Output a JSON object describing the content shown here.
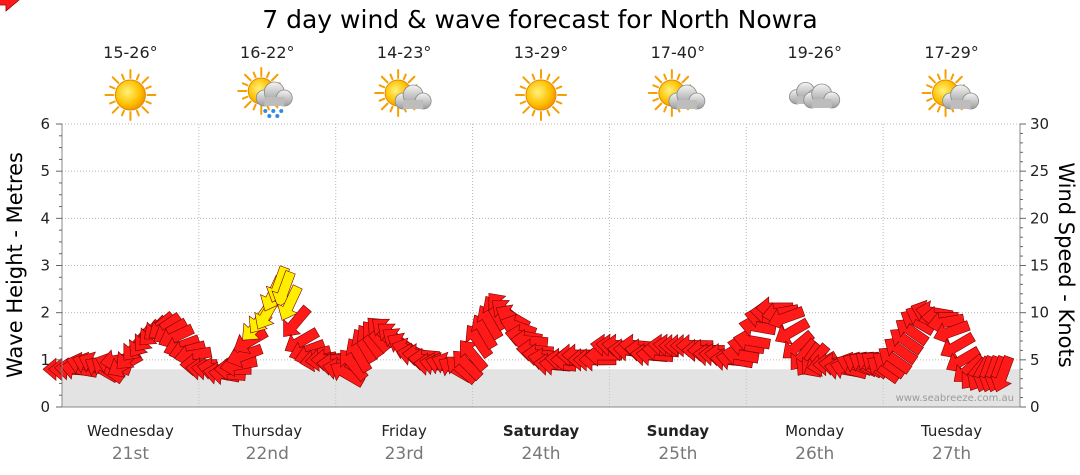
{
  "title": "7 day wind & wave forecast for North Nowra",
  "credit": "www.seabreeze.com.au",
  "colors": {
    "arrow": "#ff1a1a",
    "arrow_strong": "#ffee00",
    "grid": "#b8b8b8",
    "wave": "#cccccc"
  },
  "days": [
    {
      "name": "Wednesday",
      "date": "21st",
      "temp": "15-26°",
      "icon": "sun-icon",
      "bold": false
    },
    {
      "name": "Thursday",
      "date": "22nd",
      "temp": "16-22°",
      "icon": "sun-cloud-rain-icon",
      "bold": false
    },
    {
      "name": "Friday",
      "date": "23rd",
      "temp": "14-23°",
      "icon": "sun-cloud-icon",
      "bold": false
    },
    {
      "name": "Saturday",
      "date": "24th",
      "temp": "13-29°",
      "icon": "sun-icon",
      "bold": true
    },
    {
      "name": "Sunday",
      "date": "25th",
      "temp": "17-40°",
      "icon": "sun-cloud-icon",
      "bold": true
    },
    {
      "name": "Monday",
      "date": "26th",
      "temp": "19-26°",
      "icon": "cloud-icon",
      "bold": false
    },
    {
      "name": "Tuesday",
      "date": "27th",
      "temp": "17-29°",
      "icon": "sun-cloud-icon",
      "bold": false
    }
  ],
  "chart_data": {
    "type": "line",
    "title": "7 day wind & wave forecast for North Nowra",
    "ylabel": "Wave Height - Metres",
    "y2label": "Wind Speed - Knots",
    "ylim": [
      0,
      6
    ],
    "y2lim": [
      0,
      30
    ],
    "yticks": [
      0,
      1,
      2,
      3,
      4,
      5,
      6
    ],
    "y2ticks": [
      0,
      5,
      10,
      15,
      20,
      25,
      30
    ],
    "grid": true,
    "x_unit": "hours from start of Wednesday 21st",
    "wind": {
      "name": "Wind Speed",
      "x": [
        0,
        1,
        2,
        3,
        4,
        5,
        6,
        7,
        8,
        9,
        10,
        11,
        12,
        13,
        14,
        15,
        16,
        17,
        18,
        19,
        20,
        21,
        22,
        23,
        24,
        25,
        26,
        27,
        28,
        29,
        30,
        31,
        32,
        33,
        34,
        35,
        36,
        37,
        38,
        39,
        40,
        41,
        42,
        43,
        44,
        45,
        46,
        47,
        48,
        49,
        50,
        51,
        52,
        53,
        54,
        55,
        56,
        57,
        58,
        59,
        60,
        61,
        62,
        63,
        64,
        65,
        66,
        67,
        68,
        69,
        70,
        71,
        72,
        73,
        74,
        75,
        76,
        77,
        78,
        79,
        80,
        81,
        82,
        83,
        84,
        85,
        86,
        87,
        88,
        89,
        90,
        91,
        92,
        93,
        94,
        95,
        96,
        97,
        98,
        99,
        100,
        101,
        102,
        103,
        104,
        105,
        106,
        107,
        108,
        109,
        110,
        111,
        112,
        113,
        114,
        115,
        116,
        117,
        118,
        119,
        120,
        121,
        122,
        123,
        124,
        125,
        126,
        127,
        128,
        129,
        130,
        131,
        132,
        133,
        134,
        135,
        136,
        137,
        138,
        139,
        140,
        141,
        142,
        143,
        144,
        145,
        146,
        147,
        148,
        149,
        150,
        151,
        152,
        153,
        154,
        155,
        156,
        157,
        158,
        159,
        160,
        161,
        162,
        163,
        164,
        165,
        166,
        167
      ],
      "speed_kn": [
        4,
        4,
        4,
        4,
        4.5,
        4.5,
        4.5,
        4,
        4,
        4.5,
        5,
        4.5,
        5.5,
        6.5,
        7,
        7.5,
        8,
        8.5,
        8.5,
        8,
        7.5,
        6.5,
        6,
        5.5,
        4.5,
        4,
        4,
        4,
        3.5,
        3.5,
        4,
        4.5,
        5.5,
        7,
        8.5,
        9.5,
        10,
        12,
        13,
        12.5,
        11,
        9,
        7,
        6,
        5.5,
        5,
        5,
        5,
        4.5,
        4,
        3.5,
        4.5,
        5.5,
        6.5,
        7,
        7.5,
        8,
        8,
        7.5,
        7,
        6.5,
        6,
        5.5,
        5.5,
        5,
        4.5,
        4.5,
        4.5,
        4.5,
        4,
        4,
        4.5,
        5.5,
        7,
        8,
        9,
        10,
        10.5,
        10,
        9.5,
        8.5,
        7.5,
        7,
        6,
        5.5,
        5,
        4.5,
        4.5,
        5,
        5,
        5.5,
        5.5,
        5,
        5,
        5,
        5.5,
        6.5,
        6.5,
        6.5,
        6,
        6,
        6.5,
        6,
        5.5,
        5.5,
        6,
        6.5,
        6.5,
        6.5,
        6.5,
        6.5,
        6.5,
        6,
        6,
        5.5,
        5.5,
        5.5,
        5,
        5,
        5.5,
        6.5,
        7,
        8.5,
        9.5,
        10,
        10.5,
        10,
        9.5,
        8,
        6.5,
        5.5,
        5,
        5,
        4.5,
        4.5,
        4.5,
        4.5,
        4,
        4,
        4.5,
        4.5,
        4.5,
        4.5,
        4.5,
        4,
        4.5,
        5,
        6,
        7,
        8,
        9,
        9.5,
        10,
        10,
        9.5,
        9,
        8,
        6.5,
        5,
        4,
        3.5,
        3.5,
        3.5,
        3.5,
        3.5,
        3.5,
        3.5,
        3.5
      ],
      "dir_deg": [
        90,
        90,
        95,
        100,
        105,
        110,
        115,
        120,
        125,
        110,
        80,
        60,
        45,
        40,
        35,
        40,
        45,
        50,
        55,
        60,
        65,
        70,
        75,
        80,
        90,
        95,
        95,
        100,
        100,
        95,
        90,
        80,
        70,
        60,
        45,
        35,
        30,
        25,
        20,
        20,
        25,
        40,
        60,
        70,
        75,
        80,
        85,
        90,
        95,
        100,
        120,
        140,
        150,
        150,
        145,
        140,
        135,
        130,
        130,
        125,
        120,
        110,
        100,
        95,
        95,
        95,
        100,
        105,
        110,
        120,
        130,
        135,
        140,
        145,
        150,
        150,
        150,
        140,
        130,
        120,
        110,
        100,
        95,
        95,
        95,
        100,
        95,
        95,
        95,
        90,
        90,
        90,
        90,
        90,
        90,
        90,
        95,
        95,
        95,
        95,
        95,
        95,
        95,
        95,
        95,
        95,
        95,
        95,
        90,
        90,
        90,
        90,
        90,
        90,
        95,
        95,
        95,
        95,
        100,
        100,
        100,
        100,
        100,
        100,
        95,
        90,
        80,
        70,
        60,
        50,
        40,
        35,
        40,
        60,
        80,
        90,
        95,
        100,
        105,
        110,
        115,
        120,
        125,
        125,
        125,
        125,
        125,
        125,
        125,
        125,
        120,
        115,
        110,
        100,
        90,
        80,
        70,
        60,
        60,
        50,
        40,
        30,
        20,
        20,
        20,
        20
      ],
      "strong_x": [
        34,
        35,
        36,
        37,
        38,
        39,
        40
      ]
    },
    "wave": {
      "name": "Wave Height",
      "height_m": 0.8
    }
  }
}
